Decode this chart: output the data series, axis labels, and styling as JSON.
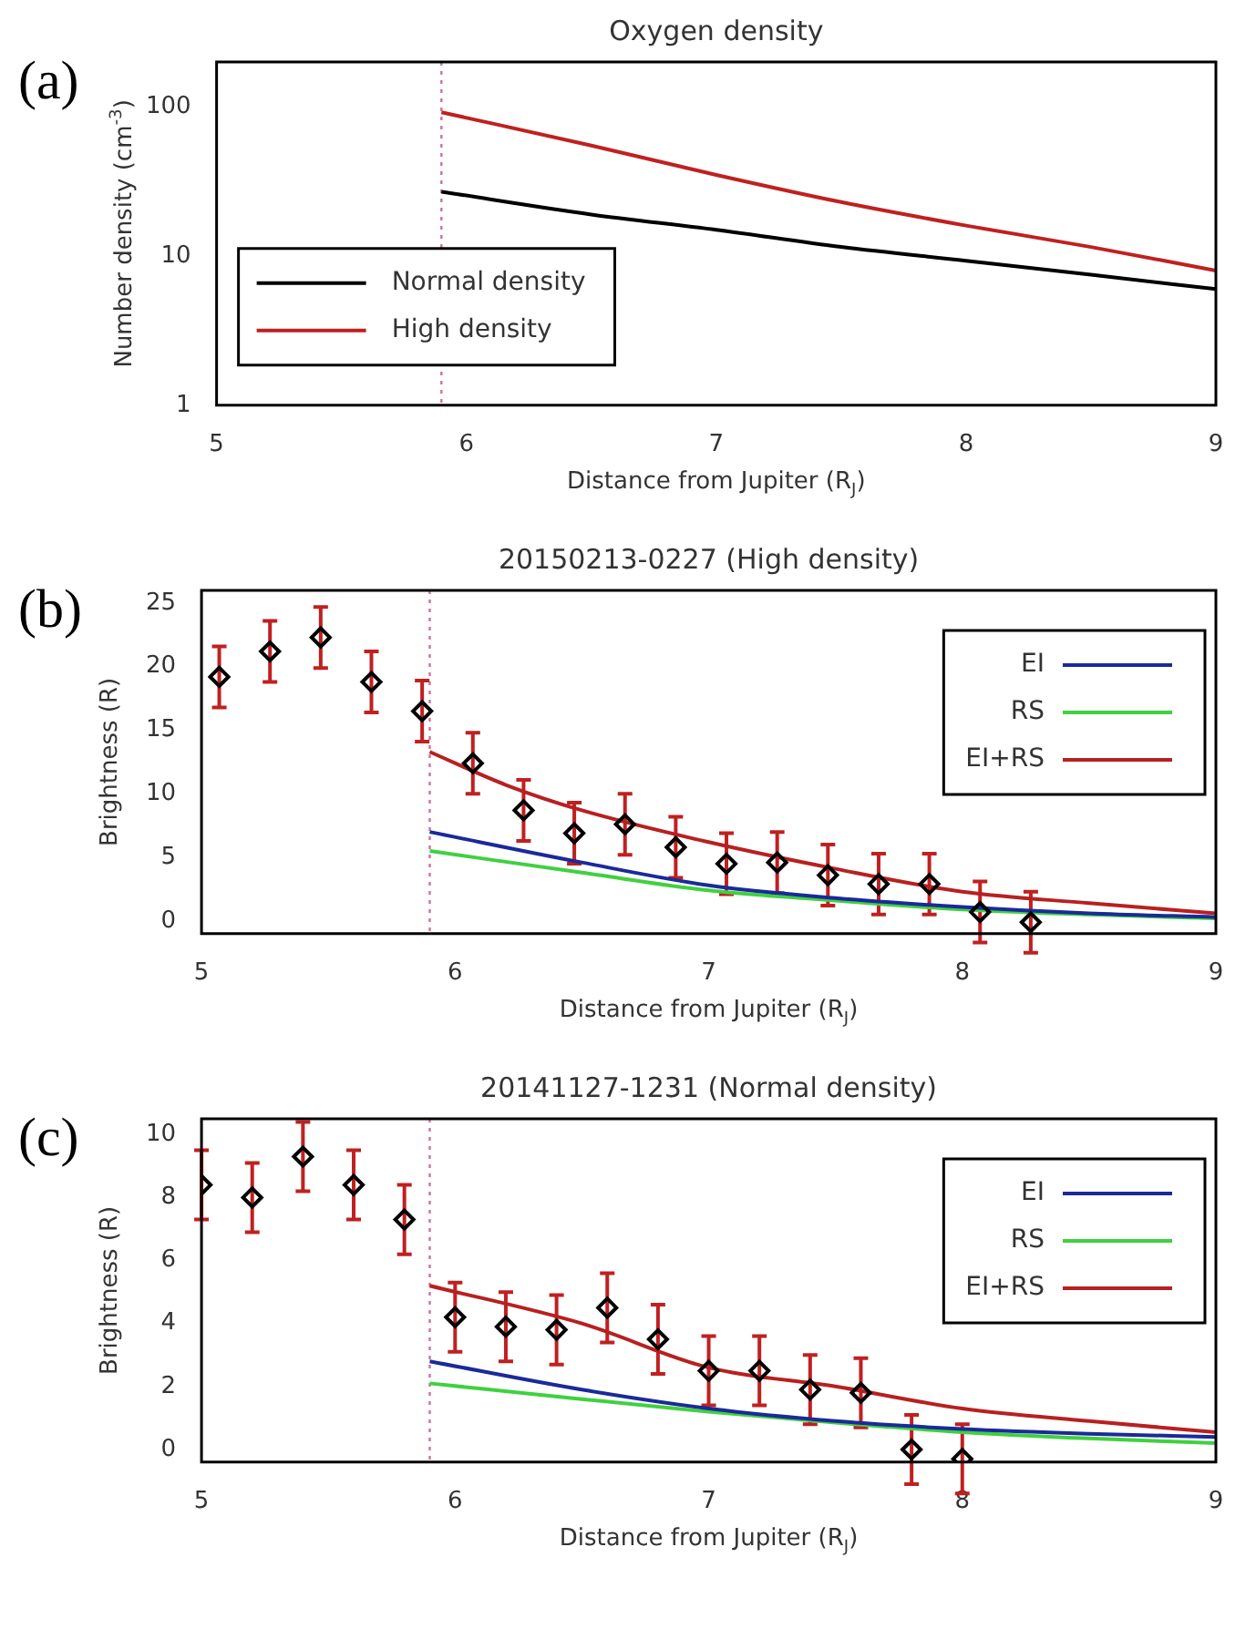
{
  "chart_data": [
    {
      "type": "line",
      "title": "Oxygen density",
      "xlabel": "Distance from Jupiter (R$_{J}$)",
      "ylabel": "Number density (cm$^{-3}$)",
      "log": "y",
      "xlim": [
        5,
        9
      ],
      "xticks": [
        5,
        6,
        7,
        8,
        9
      ],
      "ylim": [
        1,
        200
      ],
      "yticks": [
        1,
        10,
        100
      ],
      "legend": "bottom left",
      "annotations": [
        "(a)"
      ],
      "ref_lines": [
        {
          "axis": "x",
          "value": 5.9,
          "color": "#d070a0",
          "line_style": "dotted"
        }
      ],
      "series": [
        {
          "name": "Normal density",
          "color": "#000000",
          "x": [
            5.9,
            6.5,
            7,
            7.5,
            8,
            8.5,
            9
          ],
          "values": [
            27,
            19,
            15,
            11.5,
            9.3,
            7.5,
            6
          ]
        },
        {
          "name": "High density",
          "color": "#c02020",
          "x": [
            5.9,
            6.5,
            7,
            7.5,
            8,
            8.5,
            9
          ],
          "values": [
            92,
            55,
            35,
            23,
            16,
            11.5,
            8
          ]
        }
      ]
    },
    {
      "type": "line",
      "title": "20150213-0227 (High density)",
      "xlabel": "Distance from Jupiter (R$_{J}$)",
      "ylabel": "Brightness (R)",
      "xlim": [
        5,
        9
      ],
      "xticks": [
        5,
        6,
        7,
        8,
        9
      ],
      "ylim": [
        -1,
        26
      ],
      "yticks": [
        0,
        5,
        10,
        15,
        20,
        25
      ],
      "legend": "top right",
      "annotations": [
        "(b)"
      ],
      "ref_lines": [
        {
          "axis": "x",
          "value": 5.9,
          "color": "#d070a0",
          "line_style": "dotted"
        }
      ],
      "series": [
        {
          "type": "scatter",
          "marker": "diamond",
          "color": "#000000",
          "x": [
            5.07,
            5.27,
            5.47,
            5.67,
            5.87,
            6.07,
            6.27,
            6.47,
            6.67,
            6.87,
            7.07,
            7.27,
            7.47,
            7.67,
            7.87,
            8.07,
            8.27
          ],
          "values": [
            19.2,
            21.2,
            22.3,
            18.8,
            16.5,
            12.4,
            8.7,
            6.9,
            7.6,
            5.8,
            4.5,
            4.6,
            3.6,
            2.9,
            2.9,
            0.7,
            -0.1
          ],
          "errors": [
            2.4,
            2.4,
            2.4,
            2.4,
            2.4,
            2.4,
            2.4,
            2.4,
            2.4,
            2.4,
            2.4,
            2.4,
            2.4,
            2.4,
            2.4,
            2.4,
            2.4
          ]
        },
        {
          "name": "EI",
          "color": "#1a2a9a",
          "x": [
            5.9,
            6.5,
            7,
            7.5,
            8,
            8.5,
            9
          ],
          "values": [
            7.0,
            4.6,
            2.8,
            1.8,
            1.1,
            0.6,
            0.3
          ]
        },
        {
          "name": "RS",
          "color": "#40d040",
          "x": [
            5.9,
            6.5,
            7,
            7.5,
            8,
            8.5,
            9
          ],
          "values": [
            5.5,
            3.8,
            2.4,
            1.6,
            0.9,
            0.5,
            0.2
          ]
        },
        {
          "name": "EI+RS",
          "color": "#b82020",
          "x": [
            5.9,
            6.2,
            6.5,
            7,
            7.5,
            8,
            8.5,
            9
          ],
          "values": [
            13.3,
            10.7,
            8.7,
            6.2,
            4.1,
            2.3,
            1.4,
            0.6
          ]
        }
      ]
    },
    {
      "type": "line",
      "title": "20141127-1231 (Normal density)",
      "xlabel": "Distance from Jupiter (R$_{J}$)",
      "ylabel": "Brightness (R)",
      "xlim": [
        5,
        9
      ],
      "xticks": [
        5,
        6,
        7,
        8,
        9
      ],
      "ylim": [
        -0.4,
        10.5
      ],
      "yticks": [
        0,
        2,
        4,
        6,
        8,
        10
      ],
      "legend": "top right",
      "annotations": [
        "(c)"
      ],
      "ref_lines": [
        {
          "axis": "x",
          "value": 5.9,
          "color": "#d070a0",
          "line_style": "dotted"
        }
      ],
      "series": [
        {
          "type": "scatter",
          "marker": "diamond",
          "color": "#000000",
          "x": [
            5.0,
            5.2,
            5.4,
            5.6,
            5.8,
            6.0,
            6.2,
            6.4,
            6.6,
            6.8,
            7.0,
            7.2,
            7.4,
            7.6,
            7.8,
            8.0
          ],
          "values": [
            8.4,
            8.0,
            9.3,
            8.4,
            7.3,
            4.2,
            3.9,
            3.8,
            4.5,
            3.5,
            2.5,
            2.5,
            1.9,
            1.8,
            0,
            -0.3
          ],
          "errors": [
            1.1,
            1.1,
            1.1,
            1.1,
            1.1,
            1.1,
            1.1,
            1.1,
            1.1,
            1.1,
            1.1,
            1.1,
            1.1,
            1.1,
            1.1,
            1.1
          ]
        },
        {
          "name": "EI",
          "color": "#1a2a9a",
          "x": [
            5.9,
            6.5,
            7,
            7.5,
            8,
            8.5,
            9
          ],
          "values": [
            2.8,
            1.9,
            1.3,
            0.9,
            0.65,
            0.5,
            0.4
          ]
        },
        {
          "name": "RS",
          "color": "#40d040",
          "x": [
            5.9,
            6.5,
            7,
            7.5,
            8,
            8.5,
            9
          ],
          "values": [
            2.1,
            1.6,
            1.2,
            0.85,
            0.55,
            0.35,
            0.2
          ]
        },
        {
          "name": "EI+RS",
          "color": "#b82020",
          "x": [
            5.9,
            6.5,
            7,
            7.5,
            8,
            8.5,
            9
          ],
          "values": [
            5.2,
            4.0,
            2.6,
            2.0,
            1.3,
            0.9,
            0.55
          ]
        }
      ]
    }
  ]
}
